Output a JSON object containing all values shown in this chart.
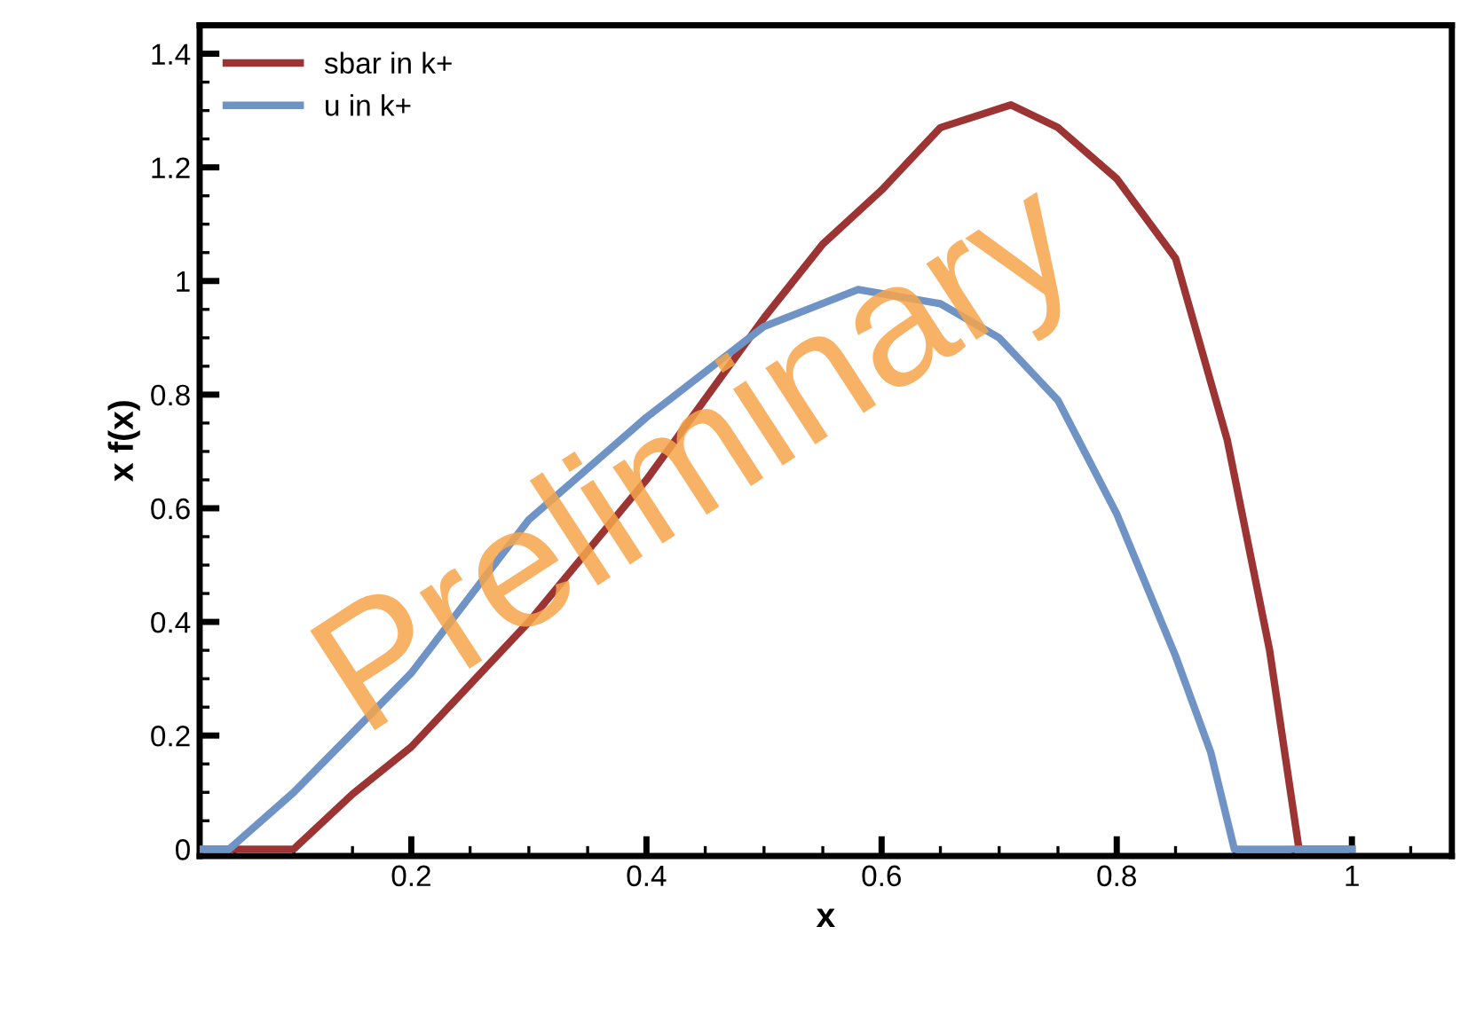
{
  "chart_data": {
    "type": "line",
    "xlabel": "x",
    "ylabel": "x f(x)",
    "xlim": [
      0.02,
      1.085
    ],
    "ylim": [
      -0.012,
      1.45
    ],
    "xticks": [
      0.2,
      0.4,
      0.6,
      0.8,
      1
    ],
    "yticks": [
      0,
      0.2,
      0.4,
      0.6,
      0.8,
      1,
      1.2,
      1.4
    ],
    "grid": false,
    "legend": "top left",
    "line_style": "solid",
    "marker": "none",
    "annotations": [
      "Preliminary"
    ],
    "series": [
      {
        "name": "sbar in k+",
        "color": "#9b3432",
        "x": [
          0.02,
          0.1,
          0.15,
          0.2,
          0.3,
          0.4,
          0.5,
          0.55,
          0.6,
          0.65,
          0.71,
          0.75,
          0.8,
          0.85,
          0.894,
          0.93,
          0.955,
          1.0
        ],
        "values": [
          0,
          0,
          0.097,
          0.18,
          0.4,
          0.65,
          0.935,
          1.065,
          1.16,
          1.27,
          1.31,
          1.27,
          1.18,
          1.04,
          0.72,
          0.35,
          0,
          0
        ]
      },
      {
        "name": "u in k+",
        "color": "#6f93c5",
        "x": [
          0.02,
          0.045,
          0.1,
          0.2,
          0.3,
          0.4,
          0.5,
          0.58,
          0.65,
          0.7,
          0.75,
          0.8,
          0.85,
          0.88,
          0.9,
          1.0
        ],
        "values": [
          0,
          0,
          0.1,
          0.31,
          0.58,
          0.76,
          0.92,
          0.985,
          0.96,
          0.9,
          0.79,
          0.59,
          0.34,
          0.17,
          0,
          0
        ]
      }
    ]
  }
}
